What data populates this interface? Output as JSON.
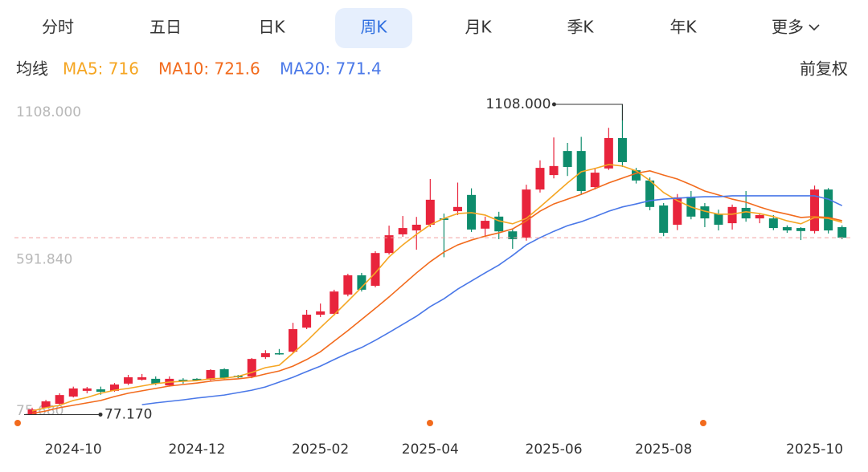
{
  "tabs": [
    "分时",
    "五日",
    "日K",
    "周K",
    "月K",
    "季K",
    "年K",
    "更多"
  ],
  "active_tab": 3,
  "ma_label": "均线",
  "adjust_label": "前复权",
  "chart_data": {
    "type": "candlestick",
    "categories": [
      null,
      null,
      null,
      "2024-10",
      null,
      null,
      null,
      null,
      null,
      null,
      null,
      null,
      "2024-12",
      null,
      null,
      null,
      null,
      null,
      null,
      null,
      null,
      "2025-02",
      null,
      null,
      null,
      null,
      null,
      null,
      null,
      "2025-04",
      null,
      null,
      null,
      null,
      null,
      null,
      null,
      null,
      "2025-06",
      null,
      null,
      null,
      null,
      null,
      null,
      null,
      "2025-08",
      null,
      null,
      null,
      null,
      null,
      null,
      null,
      null,
      null,
      null,
      "2025-10",
      null,
      null
    ],
    "open": [
      78,
      100,
      113,
      137,
      156,
      161,
      156,
      180,
      193,
      196,
      174,
      193,
      196,
      193,
      228,
      206,
      204,
      268,
      281,
      286,
      366,
      409,
      412,
      476,
      540,
      505,
      614,
      676,
      689,
      708,
      729,
      753,
      807,
      695,
      735,
      686,
      665,
      825,
      873,
      953,
      953,
      833,
      895,
      996,
      889,
      855,
      772,
      708,
      801,
      769,
      745,
      713,
      764,
      729,
      729,
      700,
      697,
      687,
      825,
      700
    ],
    "high": [
      100,
      126,
      148,
      170,
      169,
      170,
      182,
      209,
      212,
      204,
      204,
      198,
      198,
      228,
      231,
      209,
      265,
      291,
      295,
      382,
      425,
      446,
      492,
      545,
      548,
      620,
      705,
      737,
      734,
      860,
      745,
      848,
      829,
      735,
      751,
      694,
      841,
      922,
      998,
      980,
      1000,
      897,
      1030,
      1108,
      897,
      865,
      780,
      810,
      820,
      780,
      758,
      775,
      820,
      745,
      740,
      706,
      700,
      838,
      830,
      706
    ],
    "low": [
      77.17,
      98,
      110,
      134,
      148,
      143,
      153,
      175,
      190,
      175,
      170,
      180,
      188,
      190,
      195,
      198,
      198,
      262,
      276,
      281,
      361,
      401,
      406,
      470,
      486,
      500,
      609,
      668,
      625,
      700,
      600,
      740,
      684,
      668,
      660,
      628,
      655,
      815,
      862,
      870,
      807,
      825,
      890,
      900,
      845,
      756,
      670,
      690,
      726,
      700,
      689,
      692,
      718,
      713,
      690,
      681,
      657,
      679,
      679,
      660
    ],
    "close": [
      94,
      121,
      142,
      164,
      164,
      153,
      177,
      201,
      201,
      180,
      196,
      188,
      191,
      225,
      198,
      201,
      262,
      281,
      278,
      361,
      409,
      420,
      486,
      540,
      492,
      614,
      673,
      697,
      708,
      791,
      724,
      767,
      692,
      721,
      686,
      660,
      825,
      897,
      903,
      900,
      820,
      881,
      996,
      916,
      855,
      767,
      681,
      799,
      735,
      729,
      708,
      767,
      729,
      740,
      697,
      689,
      687,
      825,
      689,
      665
    ],
    "up_color": "#e8243c",
    "down_color": "#0e8c6c",
    "series": [
      {
        "name": "MA5: 716",
        "color": "#f5a623",
        "values": [
          89,
          100,
          108,
          124,
          134,
          148,
          158,
          164,
          172,
          180,
          185,
          188,
          190,
          196,
          198,
          204,
          217,
          233,
          241,
          281,
          321,
          366,
          409,
          454,
          500,
          548,
          601,
          641,
          676,
          708,
          729,
          745,
          748,
          740,
          721,
          711,
          729,
          767,
          807,
          847,
          884,
          895,
          908,
          903,
          887,
          855,
          815,
          788,
          767,
          753,
          743,
          743,
          751,
          745,
          735,
          721,
          711,
          732,
          729,
          716
        ]
      },
      {
        "name": "MA10: 721.6",
        "color": "#f26b1d",
        "values": [
          81,
          89,
          100,
          108,
          116,
          124,
          137,
          148,
          156,
          164,
          172,
          177,
          182,
          188,
          193,
          196,
          201,
          212,
          222,
          238,
          260,
          286,
          321,
          356,
          393,
          430,
          468,
          508,
          548,
          585,
          617,
          641,
          657,
          670,
          681,
          694,
          721,
          753,
          777,
          793,
          809,
          828,
          847,
          863,
          879,
          887,
          873,
          860,
          841,
          820,
          807,
          793,
          783,
          767,
          753,
          743,
          732,
          735,
          732,
          721.6
        ]
      },
      {
        "name": "MA20: 771.4",
        "color": "#4a78e8",
        "values": [
          null,
          null,
          null,
          null,
          null,
          null,
          null,
          null,
          110,
          116,
          121,
          126,
          132,
          137,
          142,
          150,
          158,
          169,
          185,
          201,
          220,
          238,
          260,
          281,
          300,
          324,
          350,
          377,
          404,
          436,
          462,
          494,
          521,
          548,
          574,
          606,
          641,
          665,
          686,
          705,
          718,
          735,
          753,
          767,
          777,
          788,
          793,
          796,
          799,
          801,
          801,
          804,
          804,
          804,
          804,
          804,
          804,
          804,
          793,
          771.4
        ]
      }
    ],
    "ylim": [
      75.68,
      1108
    ],
    "yticks": [
      {
        "value": 1108,
        "label": "1108.000"
      },
      {
        "value": 591.84,
        "label": "591.840"
      },
      {
        "value": 75.68,
        "label": "75.680"
      }
    ],
    "max_label": "1108.000",
    "min_label": "77.170",
    "grid": false
  }
}
